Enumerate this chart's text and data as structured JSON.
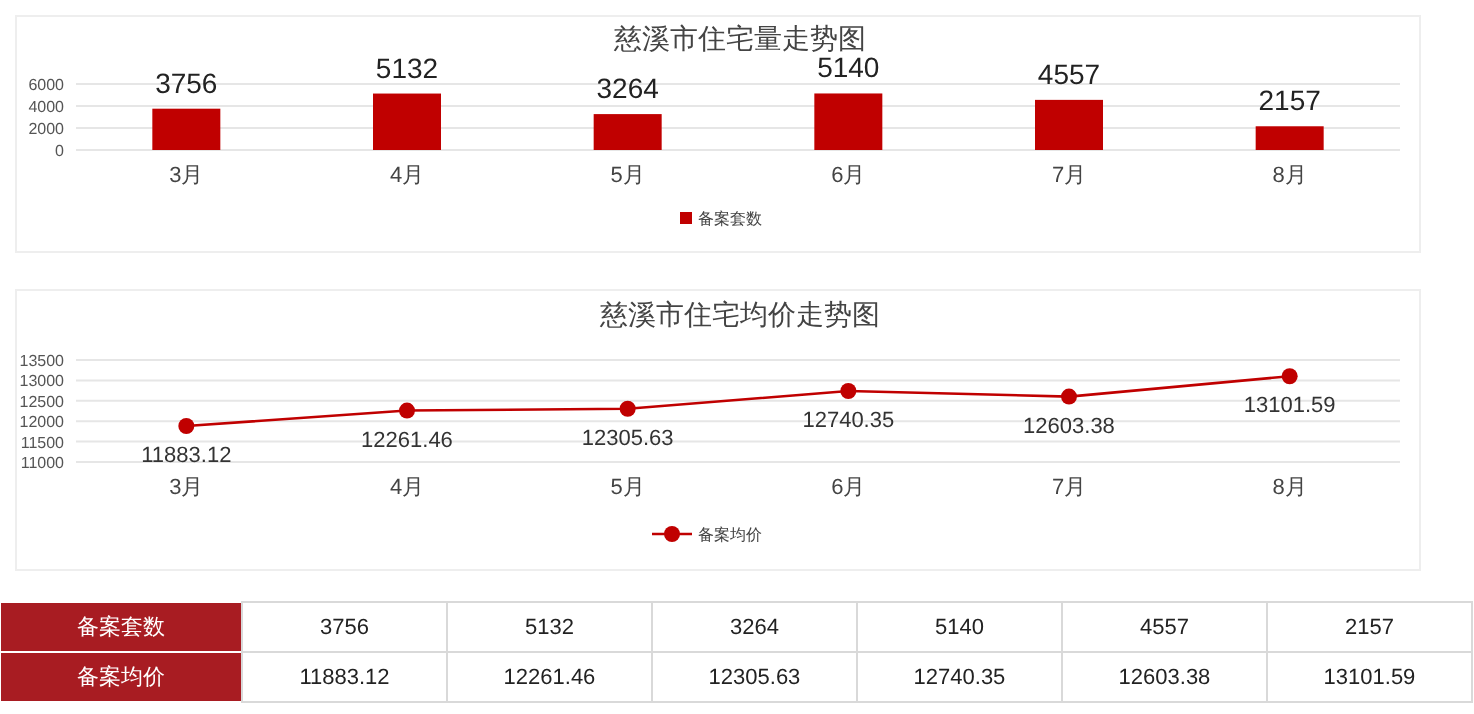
{
  "chart_data": [
    {
      "type": "bar",
      "title": "慈溪市住宅量走势图",
      "categories": [
        "3月",
        "4月",
        "5月",
        "6月",
        "7月",
        "8月"
      ],
      "series": [
        {
          "name": "备案套数",
          "color": "#c00000",
          "values": [
            3756,
            5132,
            3264,
            5140,
            4557,
            2157
          ]
        }
      ],
      "ylim": [
        0,
        6000
      ],
      "yticks": [
        0,
        2000,
        4000,
        6000
      ],
      "grid": "y",
      "legend": "bottom",
      "data_labels": true
    },
    {
      "type": "line",
      "title": "慈溪市住宅均价走势图",
      "categories": [
        "3月",
        "4月",
        "5月",
        "6月",
        "7月",
        "8月"
      ],
      "series": [
        {
          "name": "备案均价",
          "color": "#c00000",
          "values": [
            11883.12,
            12261.46,
            12305.63,
            12740.35,
            12603.38,
            13101.59
          ]
        }
      ],
      "ylim": [
        11000,
        13500
      ],
      "yticks": [
        11000,
        11500,
        12000,
        12500,
        13000,
        13500
      ],
      "grid": "y",
      "legend": "bottom",
      "marker": "circle",
      "line_style": "solid",
      "data_labels": true
    },
    {
      "type": "other",
      "annotations": [
        "备案套数",
        "3756",
        "5132",
        "3264",
        "5140",
        "4557",
        "2157",
        "备案均价",
        "11883.12",
        "12261.46",
        "12305.63",
        "12740.35",
        "12603.38",
        "13101.59"
      ]
    }
  ]
}
